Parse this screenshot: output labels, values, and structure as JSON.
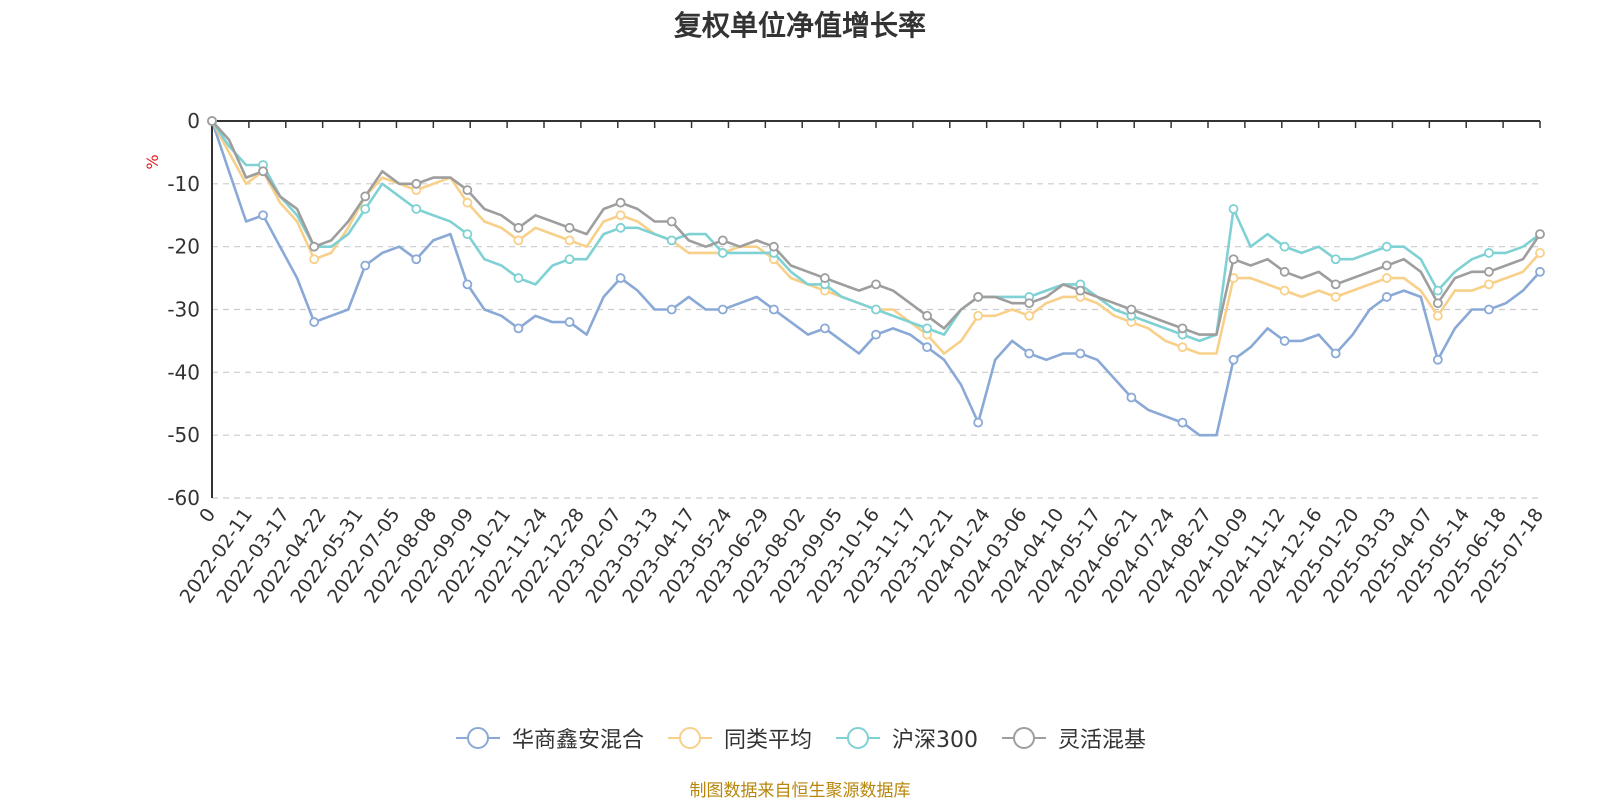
{
  "title": "复权单位净值增长率",
  "source_note": "制图数据来自恒生聚源数据库",
  "chart_data": {
    "type": "line",
    "title": "复权单位净值增长率",
    "ylabel": "%",
    "ylim": [
      -60,
      0
    ],
    "y_ticks": [
      0,
      -10,
      -20,
      -30,
      -40,
      -50,
      -60
    ],
    "grid": "horizontal-dashed",
    "legend_position": "bottom",
    "x_ticks": [
      "0",
      "2022-02-11",
      "2022-03-17",
      "2022-04-22",
      "2022-05-31",
      "2022-07-05",
      "2022-08-08",
      "2022-09-09",
      "2022-10-21",
      "2022-11-24",
      "2022-12-28",
      "2023-02-07",
      "2023-03-13",
      "2023-04-17",
      "2023-05-24",
      "2023-06-29",
      "2023-08-02",
      "2023-09-05",
      "2023-10-16",
      "2023-11-17",
      "2023-12-21",
      "2024-01-24",
      "2024-03-06",
      "2024-04-10",
      "2024-05-17",
      "2024-06-21",
      "2024-07-24",
      "2024-08-27",
      "2024-10-09",
      "2024-11-12",
      "2024-12-16",
      "2025-01-20",
      "2025-03-03",
      "2025-04-07",
      "2025-05-14",
      "2025-06-18",
      "2025-07-18"
    ],
    "series": [
      {
        "name": "华商鑫安混合",
        "color": "#8aa9d6",
        "values": [
          0,
          -8,
          -16,
          -15,
          -20,
          -25,
          -32,
          -31,
          -30,
          -23,
          -21,
          -20,
          -22,
          -19,
          -18,
          -26,
          -30,
          -31,
          -33,
          -31,
          -32,
          -32,
          -34,
          -28,
          -25,
          -27,
          -30,
          -30,
          -28,
          -30,
          -30,
          -29,
          -28,
          -30,
          -32,
          -34,
          -33,
          -35,
          -37,
          -34,
          -33,
          -34,
          -36,
          -38,
          -42,
          -48,
          -38,
          -35,
          -37,
          -38,
          -37,
          -37,
          -38,
          -41,
          -44,
          -46,
          -47,
          -48,
          -50,
          -50,
          -38,
          -36,
          -33,
          -35,
          -35,
          -34,
          -37,
          -34,
          -30,
          -28,
          -27,
          -28,
          -38,
          -33,
          -30,
          -30,
          -29,
          -27,
          -24
        ]
      },
      {
        "name": "同类平均",
        "color": "#f8d089",
        "values": [
          0,
          -5,
          -10,
          -8,
          -13,
          -16,
          -22,
          -21,
          -17,
          -12,
          -9,
          -10,
          -11,
          -10,
          -9,
          -13,
          -16,
          -17,
          -19,
          -17,
          -18,
          -19,
          -20,
          -16,
          -15,
          -16,
          -18,
          -19,
          -21,
          -21,
          -21,
          -20,
          -20,
          -22,
          -25,
          -26,
          -27,
          -28,
          -29,
          -30,
          -30,
          -32,
          -34,
          -37,
          -35,
          -31,
          -31,
          -30,
          -31,
          -29,
          -28,
          -28,
          -29,
          -31,
          -32,
          -33,
          -35,
          -36,
          -37,
          -37,
          -25,
          -25,
          -26,
          -27,
          -28,
          -27,
          -28,
          -27,
          -26,
          -25,
          -25,
          -27,
          -31,
          -27,
          -27,
          -26,
          -25,
          -24,
          -21
        ]
      },
      {
        "name": "沪深300",
        "color": "#7fd1d4",
        "values": [
          0,
          -4,
          -7,
          -7,
          -12,
          -15,
          -20,
          -20,
          -18,
          -14,
          -10,
          -12,
          -14,
          -15,
          -16,
          -18,
          -22,
          -23,
          -25,
          -26,
          -23,
          -22,
          -22,
          -18,
          -17,
          -17,
          -18,
          -19,
          -18,
          -18,
          -21,
          -21,
          -21,
          -21,
          -24,
          -26,
          -26,
          -28,
          -29,
          -30,
          -31,
          -32,
          -33,
          -34,
          -30,
          -28,
          -28,
          -28,
          -28,
          -27,
          -26,
          -26,
          -28,
          -30,
          -31,
          -32,
          -33,
          -34,
          -35,
          -34,
          -14,
          -20,
          -18,
          -20,
          -21,
          -20,
          -22,
          -22,
          -21,
          -20,
          -20,
          -22,
          -27,
          -24,
          -22,
          -21,
          -21,
          -20,
          -18
        ]
      },
      {
        "name": "灵活混基",
        "color": "#9e9e9e",
        "values": [
          0,
          -3,
          -9,
          -8,
          -12,
          -14,
          -20,
          -19,
          -16,
          -12,
          -8,
          -10,
          -10,
          -9,
          -9,
          -11,
          -14,
          -15,
          -17,
          -15,
          -16,
          -17,
          -18,
          -14,
          -13,
          -14,
          -16,
          -16,
          -19,
          -20,
          -19,
          -20,
          -19,
          -20,
          -23,
          -24,
          -25,
          -26,
          -27,
          -26,
          -27,
          -29,
          -31,
          -33,
          -30,
          -28,
          -28,
          -29,
          -29,
          -28,
          -26,
          -27,
          -28,
          -29,
          -30,
          -31,
          -32,
          -33,
          -34,
          -34,
          -22,
          -23,
          -22,
          -24,
          -25,
          -24,
          -26,
          -25,
          -24,
          -23,
          -22,
          -24,
          -29,
          -25,
          -24,
          -24,
          -23,
          -22,
          -18
        ]
      }
    ]
  }
}
